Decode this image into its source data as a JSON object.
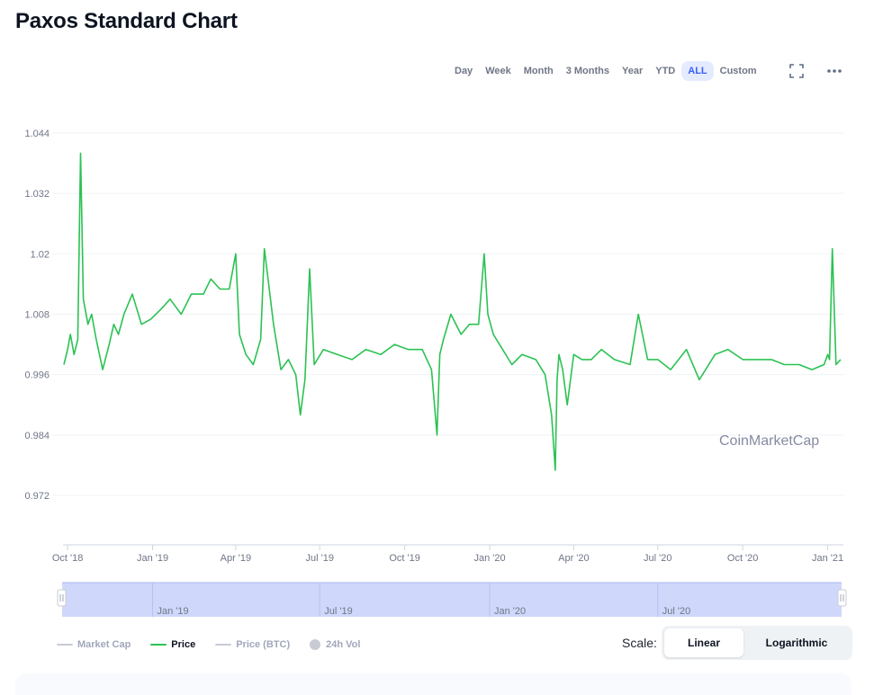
{
  "page": {
    "title": "Paxos Standard Chart"
  },
  "range_buttons": [
    {
      "label": "Day",
      "active": false
    },
    {
      "label": "Week",
      "active": false
    },
    {
      "label": "Month",
      "active": false
    },
    {
      "label": "3 Months",
      "active": false
    },
    {
      "label": "Year",
      "active": false
    },
    {
      "label": "YTD",
      "active": false
    },
    {
      "label": "ALL",
      "active": true
    },
    {
      "label": "Custom",
      "active": false
    }
  ],
  "icons": {
    "fullscreen": "fullscreen-icon",
    "more": "more-options-icon"
  },
  "colors": {
    "price_line": "#2bc253",
    "accent": "#3861fb",
    "navigator_fill": "#cfd8fb"
  },
  "chart_data": {
    "type": "line",
    "title": "",
    "xlabel": "",
    "ylabel": "",
    "ylim": [
      0.962,
      1.044
    ],
    "y_ticks": [
      "1.044",
      "1.032",
      "1.02",
      "1.008",
      "0.996",
      "0.984",
      "0.972"
    ],
    "x_ticks": [
      "Oct '18",
      "Jan '19",
      "Apr '19",
      "Jul '19",
      "Oct '19",
      "Jan '20",
      "Apr '20",
      "Jul '20",
      "Oct '20",
      "Jan '21"
    ],
    "grid": true,
    "series": [
      {
        "name": "Price",
        "x": [
          "2018-09-27",
          "2018-10-01",
          "2018-10-04",
          "2018-10-08",
          "2018-10-12",
          "2018-10-15",
          "2018-10-18",
          "2018-10-23",
          "2018-10-27",
          "2018-11-01",
          "2018-11-08",
          "2018-11-15",
          "2018-11-20",
          "2018-11-25",
          "2018-12-01",
          "2018-12-10",
          "2018-12-20",
          "2018-12-30",
          "2019-01-10",
          "2019-01-20",
          "2019-02-01",
          "2019-02-12",
          "2019-02-25",
          "2019-03-05",
          "2019-03-15",
          "2019-03-25",
          "2019-04-01",
          "2019-04-05",
          "2019-04-12",
          "2019-04-20",
          "2019-04-28",
          "2019-05-02",
          "2019-05-06",
          "2019-05-12",
          "2019-05-20",
          "2019-05-28",
          "2019-06-05",
          "2019-06-10",
          "2019-06-15",
          "2019-06-20",
          "2019-06-25",
          "2019-07-05",
          "2019-07-20",
          "2019-08-05",
          "2019-08-20",
          "2019-09-05",
          "2019-09-20",
          "2019-10-05",
          "2019-10-20",
          "2019-10-30",
          "2019-11-05",
          "2019-11-08",
          "2019-11-12",
          "2019-11-20",
          "2019-12-01",
          "2019-12-10",
          "2019-12-20",
          "2019-12-26",
          "2019-12-30",
          "2020-01-05",
          "2020-01-15",
          "2020-01-25",
          "2020-02-05",
          "2020-02-20",
          "2020-03-01",
          "2020-03-08",
          "2020-03-12",
          "2020-03-14",
          "2020-03-16",
          "2020-03-20",
          "2020-03-25",
          "2020-04-01",
          "2020-04-10",
          "2020-04-20",
          "2020-05-01",
          "2020-05-15",
          "2020-06-01",
          "2020-06-10",
          "2020-06-20",
          "2020-07-01",
          "2020-07-15",
          "2020-08-01",
          "2020-08-15",
          "2020-09-01",
          "2020-09-15",
          "2020-10-01",
          "2020-10-15",
          "2020-11-01",
          "2020-11-15",
          "2020-12-01",
          "2020-12-15",
          "2020-12-28",
          "2021-01-01",
          "2021-01-03",
          "2021-01-06",
          "2021-01-10",
          "2021-01-15"
        ],
        "y": [
          0.998,
          1.001,
          1.004,
          1.0,
          1.003,
          1.04,
          1.011,
          1.006,
          1.008,
          1.003,
          0.997,
          1.002,
          1.006,
          1.004,
          1.008,
          1.012,
          1.006,
          1.007,
          1.009,
          1.011,
          1.008,
          1.012,
          1.012,
          1.015,
          1.013,
          1.013,
          1.02,
          1.004,
          1.0,
          0.998,
          1.003,
          1.021,
          1.015,
          1.006,
          0.997,
          0.999,
          0.996,
          0.988,
          0.995,
          1.017,
          0.998,
          1.001,
          1.0,
          0.999,
          1.001,
          1.0,
          1.002,
          1.001,
          1.001,
          0.997,
          0.984,
          1.0,
          1.003,
          1.008,
          1.004,
          1.006,
          1.006,
          1.02,
          1.008,
          1.004,
          1.001,
          0.998,
          1.0,
          0.999,
          0.996,
          0.988,
          0.977,
          0.995,
          1.0,
          0.997,
          0.99,
          1.0,
          0.999,
          0.999,
          1.001,
          0.999,
          0.998,
          1.008,
          0.999,
          0.999,
          0.997,
          1.001,
          0.995,
          1.0,
          1.001,
          0.999,
          0.999,
          0.999,
          0.998,
          0.998,
          0.997,
          0.998,
          1.0,
          0.999,
          1.021,
          0.998,
          0.999
        ]
      }
    ]
  },
  "watermark": "CoinMarketCap",
  "navigator": {
    "labels": [
      "Jan '19",
      "Jul '19",
      "Jan '20",
      "Jul '20"
    ]
  },
  "legend": {
    "items": [
      {
        "label": "Market Cap",
        "on": false
      },
      {
        "label": "Price",
        "on": true
      },
      {
        "label": "Price (BTC)",
        "on": false
      },
      {
        "label": "24h Vol",
        "on": false
      }
    ]
  },
  "scale": {
    "label": "Scale:",
    "options": [
      {
        "label": "Linear",
        "active": true
      },
      {
        "label": "Logarithmic",
        "active": false
      }
    ]
  }
}
